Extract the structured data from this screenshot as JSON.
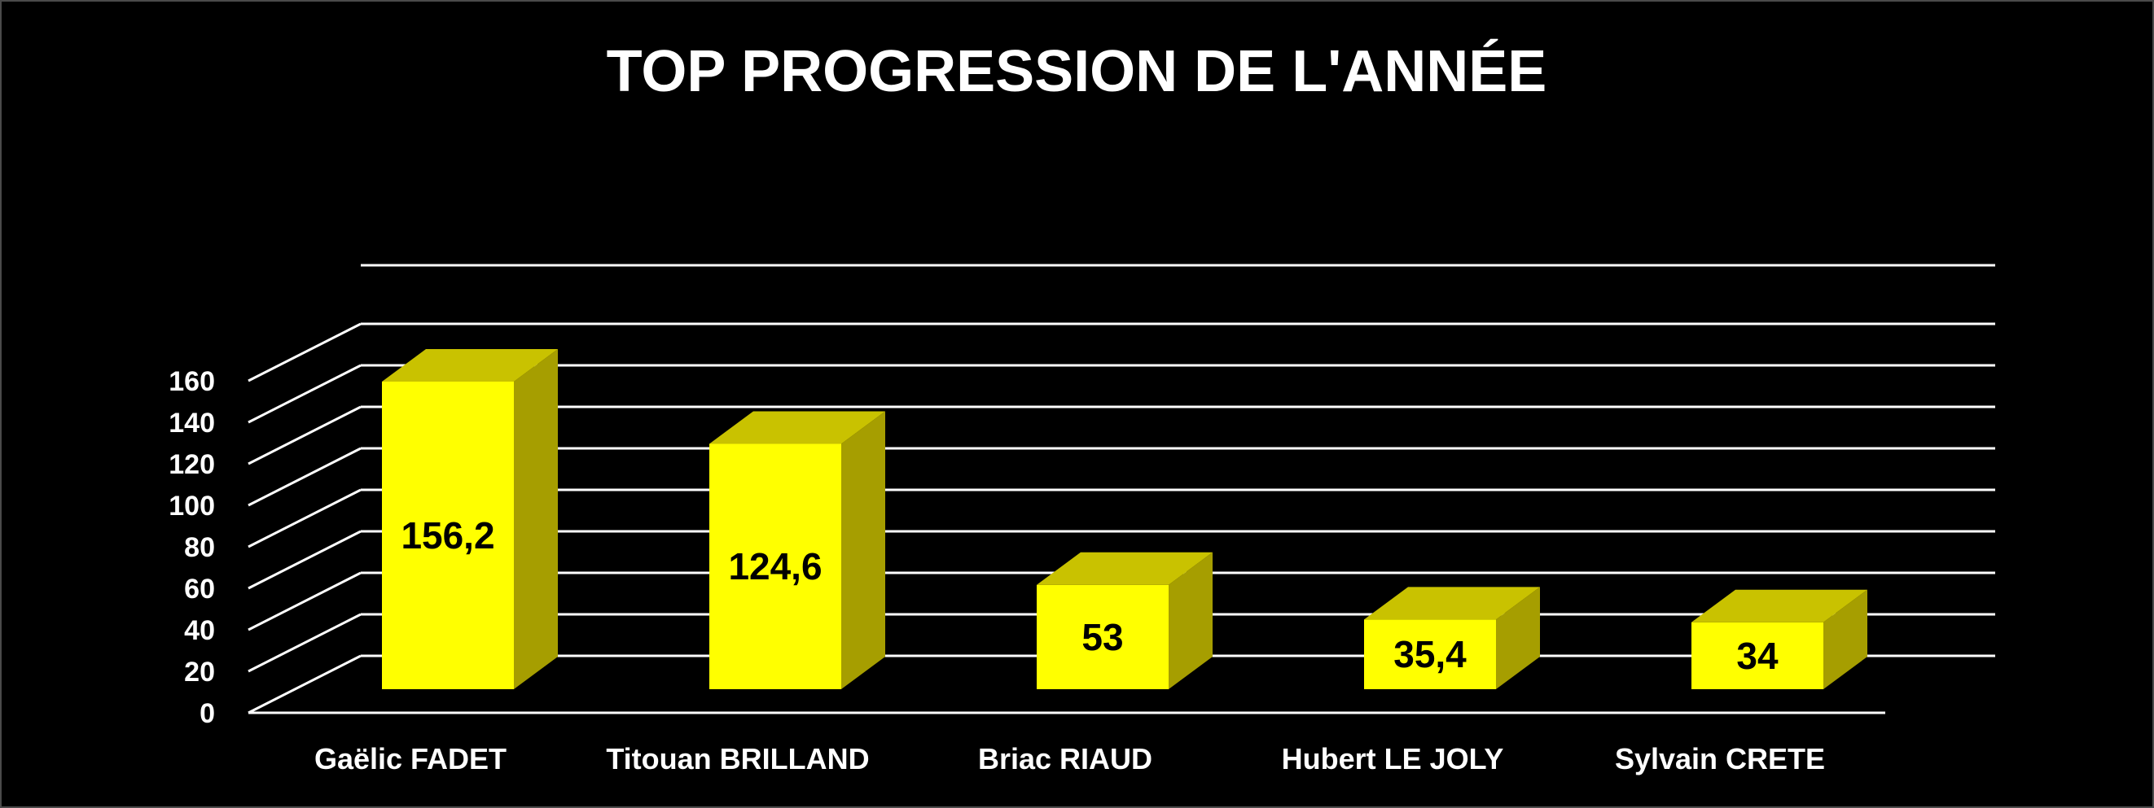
{
  "chart_data": {
    "type": "bar",
    "title": "TOP PROGRESSION DE L'ANNÉE",
    "categories": [
      "Gaëlic FADET",
      "Titouan BRILLAND",
      "Briac RIAUD",
      "Hubert LE JOLY",
      "Sylvain CRETE"
    ],
    "values": [
      156.2,
      124.6,
      53,
      35.4,
      34
    ],
    "data_labels": [
      "156,2",
      "124,6",
      "53",
      "35,4",
      "34"
    ],
    "ylim": [
      0,
      160
    ],
    "y_ticks": [
      "0",
      "20",
      "40",
      "60",
      "80",
      "100",
      "120",
      "140",
      "160"
    ],
    "grid": true,
    "legend": "none",
    "colors": {
      "background": "#000000",
      "bar_front": "#ffff00",
      "bar_top": "#c9c200",
      "bar_side": "#a69e00",
      "grid": "#ffffff",
      "text": "#ffffff",
      "data_label": "#000000"
    }
  }
}
